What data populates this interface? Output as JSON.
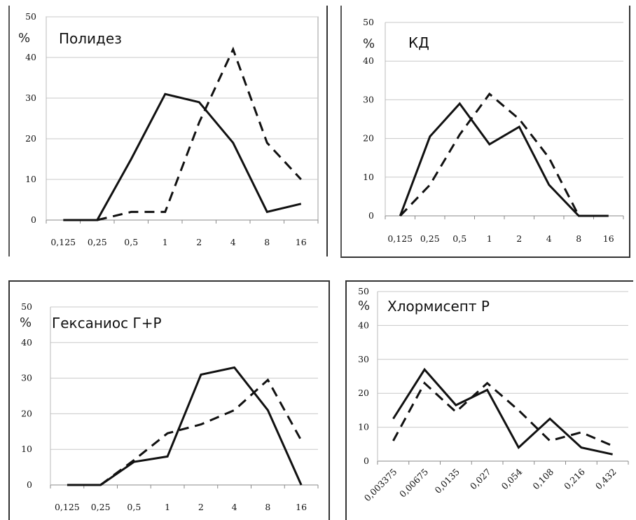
{
  "chart_data": [
    {
      "type": "line",
      "title": "Полидез",
      "ylabel": "%",
      "categories": [
        "0,125",
        "0,25",
        "0,5",
        "1",
        "2",
        "4",
        "8",
        "16"
      ],
      "y_ticks": [
        "0",
        "10",
        "20",
        "30",
        "40",
        "50"
      ],
      "ylim": [
        0,
        50
      ],
      "grid": true,
      "series": [
        {
          "style": "solid",
          "values": [
            0,
            0,
            15,
            31,
            29,
            19,
            2,
            4
          ]
        },
        {
          "style": "dashed",
          "values": [
            null,
            0,
            2,
            2,
            24,
            42,
            19,
            10
          ]
        }
      ]
    },
    {
      "type": "line",
      "title": "КД",
      "ylabel": "%",
      "categories": [
        "0,125",
        "0,25",
        "0,5",
        "1",
        "2",
        "4",
        "8",
        "16"
      ],
      "y_ticks": [
        "0",
        "10",
        "20",
        "30",
        "40",
        "50"
      ],
      "ylim": [
        0,
        50
      ],
      "grid": true,
      "series": [
        {
          "style": "solid",
          "values": [
            0,
            20.5,
            29,
            18.5,
            23,
            8,
            0,
            0
          ]
        },
        {
          "style": "dashed",
          "values": [
            0,
            8,
            21,
            31.5,
            25,
            15,
            0,
            null
          ]
        }
      ]
    },
    {
      "type": "line",
      "title": "Гексаниос  Г+Р",
      "ylabel": "%",
      "categories": [
        "0,125",
        "0,25",
        "0,5",
        "1",
        "2",
        "4",
        "8",
        "16"
      ],
      "y_ticks": [
        "0",
        "10",
        "20",
        "30",
        "40",
        "50"
      ],
      "ylim": [
        0,
        50
      ],
      "grid": true,
      "series": [
        {
          "style": "solid",
          "values": [
            0,
            0,
            6.5,
            8,
            31,
            33,
            21,
            0
          ]
        },
        {
          "style": "dashed",
          "values": [
            null,
            0,
            7,
            14.5,
            17,
            21,
            29.5,
            12.5
          ]
        }
      ]
    },
    {
      "type": "line",
      "title": "Хлормисепт Р",
      "ylabel": "%",
      "categories": [
        "0,003375",
        "0,00675",
        "0,0135",
        "0,027",
        "0,054",
        "0,108",
        "0,216",
        "0,432"
      ],
      "y_ticks": [
        "0",
        "10",
        "20",
        "30",
        "40",
        "50"
      ],
      "ylim": [
        0,
        50
      ],
      "grid": true,
      "series": [
        {
          "style": "solid",
          "values": [
            12.5,
            27,
            16.5,
            21,
            4,
            12.5,
            4,
            2
          ]
        },
        {
          "style": "dashed",
          "values": [
            6,
            23,
            14.5,
            23,
            15,
            6,
            8.5,
            4.5
          ]
        }
      ]
    }
  ]
}
